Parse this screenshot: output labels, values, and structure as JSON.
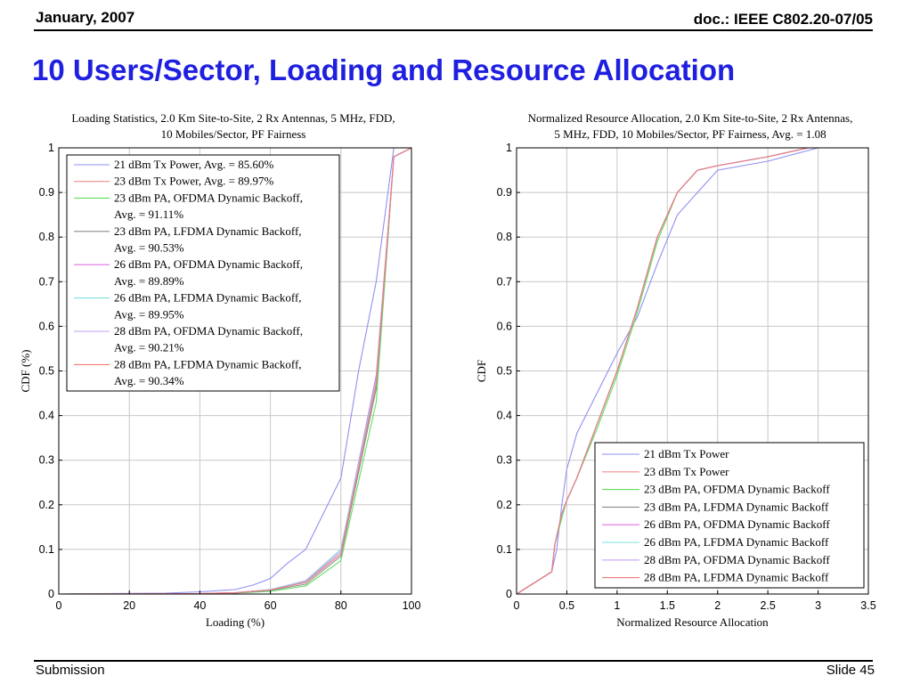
{
  "header": {
    "date": "January, 2007",
    "doc": "doc.: IEEE C802.20-07/05"
  },
  "slide_title": "10 Users/Sector, Loading and Resource Allocation",
  "footer": {
    "left": "Submission",
    "right": "Slide 45"
  },
  "chart_data": [
    {
      "type": "line",
      "title_lines": [
        "Loading Statistics, 2.0 Km Site-to-Site, 2 Rx Antennas, 5 MHz, FDD,",
        "10 Mobiles/Sector, PF Fairness"
      ],
      "xlabel": "Loading (%)",
      "ylabel": "CDF (%)",
      "xlim": [
        0,
        100
      ],
      "ylim": [
        0,
        1
      ],
      "xticks": [
        0,
        20,
        40,
        60,
        80,
        100
      ],
      "xtick_labels": [
        "0",
        "20",
        "40",
        "60",
        "80",
        "100"
      ],
      "yticks": [
        0,
        0.1,
        0.2,
        0.3,
        0.4,
        0.5,
        0.6,
        0.7,
        0.8,
        0.9,
        1
      ],
      "ytick_labels": [
        "0",
        "0.1",
        "0.2",
        "0.3",
        "0.4",
        "0.5",
        "0.6",
        "0.7",
        "0.8",
        "0.9",
        "1"
      ],
      "grid": true,
      "legend_position": "top-left",
      "series": [
        {
          "legend_lines": [
            "21 dBm Tx Power, Avg. = 85.60%"
          ],
          "color": "#8f8ff2",
          "x": [
            0,
            30,
            40,
            50,
            55,
            60,
            65,
            70,
            75,
            80,
            85,
            90,
            95,
            100
          ],
          "y": [
            0,
            0.002,
            0.005,
            0.01,
            0.02,
            0.035,
            0.07,
            0.1,
            0.18,
            0.26,
            0.5,
            0.7,
            1.0,
            1.0
          ]
        },
        {
          "legend_lines": [
            "23 dBm Tx Power, Avg. = 89.97%"
          ],
          "color": "#f08f8f",
          "x": [
            0,
            40,
            50,
            60,
            70,
            80,
            90,
            95,
            100
          ],
          "y": [
            0,
            0.001,
            0.003,
            0.01,
            0.028,
            0.1,
            0.48,
            0.98,
            1.0
          ]
        },
        {
          "legend_lines": [
            "23 dBm PA, OFDMA Dynamic Backoff,",
            "Avg. = 91.11%"
          ],
          "color": "#5fe05f",
          "x": [
            0,
            40,
            50,
            60,
            70,
            80,
            90,
            95,
            100
          ],
          "y": [
            0,
            0.001,
            0.002,
            0.006,
            0.018,
            0.075,
            0.43,
            0.98,
            1.0
          ]
        },
        {
          "legend_lines": [
            "23 dBm PA, LFDMA Dynamic Backoff,",
            "Avg. = 90.53%"
          ],
          "color": "#8c8c8c",
          "x": [
            0,
            40,
            50,
            60,
            70,
            80,
            90,
            95,
            100
          ],
          "y": [
            0,
            0.001,
            0.002,
            0.008,
            0.022,
            0.085,
            0.46,
            0.98,
            1.0
          ]
        },
        {
          "legend_lines": [
            "26 dBm PA, OFDMA Dynamic Backoff,",
            "Avg. = 89.89%"
          ],
          "color": "#e070e0",
          "x": [
            0,
            40,
            50,
            60,
            70,
            80,
            90,
            95,
            100
          ],
          "y": [
            0,
            0.001,
            0.003,
            0.01,
            0.03,
            0.1,
            0.49,
            0.98,
            1.0
          ]
        },
        {
          "legend_lines": [
            "26 dBm PA, LFDMA Dynamic Backoff,",
            "Avg. = 89.95%"
          ],
          "color": "#7fe0e0",
          "x": [
            0,
            40,
            50,
            60,
            70,
            80,
            90,
            95,
            100
          ],
          "y": [
            0,
            0.001,
            0.003,
            0.01,
            0.029,
            0.1,
            0.48,
            0.98,
            1.0
          ]
        },
        {
          "legend_lines": [
            "28 dBm PA, OFDMA Dynamic Backoff,",
            "Avg. = 90.21%"
          ],
          "color": "#c4a0f2",
          "x": [
            0,
            40,
            50,
            60,
            70,
            80,
            90,
            95,
            100
          ],
          "y": [
            0,
            0.001,
            0.003,
            0.009,
            0.027,
            0.095,
            0.47,
            0.98,
            1.0
          ]
        },
        {
          "legend_lines": [
            "28 dBm PA, LFDMA Dynamic Backoff,",
            "Avg. = 90.34%"
          ],
          "color": "#f07878",
          "x": [
            0,
            40,
            50,
            60,
            70,
            80,
            90,
            95,
            100
          ],
          "y": [
            0,
            0.001,
            0.003,
            0.009,
            0.026,
            0.09,
            0.47,
            0.98,
            1.0
          ]
        }
      ]
    },
    {
      "type": "line",
      "title_lines": [
        "Normalized Resource Allocation, 2.0 Km Site-to-Site, 2 Rx Antennas,",
        "5 MHz, FDD, 10 Mobiles/Sector, PF Fairness, Avg. = 1.08"
      ],
      "xlabel": "Normalized Resource Allocation",
      "ylabel": "CDF",
      "xlim": [
        0,
        3.5
      ],
      "ylim": [
        0,
        1
      ],
      "xticks": [
        0,
        0.5,
        1,
        1.5,
        2,
        2.5,
        3,
        3.5
      ],
      "xtick_labels": [
        "0",
        "0.5",
        "1",
        "1.5",
        "2",
        "2.5",
        "3",
        "3.5"
      ],
      "yticks": [
        0,
        0.1,
        0.2,
        0.3,
        0.4,
        0.5,
        0.6,
        0.7,
        0.8,
        0.9,
        1
      ],
      "ytick_labels": [
        "0",
        "0.1",
        "0.2",
        "0.3",
        "0.4",
        "0.5",
        "0.6",
        "0.7",
        "0.8",
        "0.9",
        "1"
      ],
      "grid": true,
      "legend_position": "bottom-right",
      "series": [
        {
          "legend_lines": [
            "21 dBm Tx Power"
          ],
          "color": "#8f8ff2",
          "x": [
            0,
            0.35,
            0.4,
            0.45,
            0.5,
            0.55,
            0.6,
            0.8,
            1.0,
            1.2,
            1.4,
            1.6,
            1.8,
            2.0,
            2.5,
            3.0
          ],
          "y": [
            0,
            0.05,
            0.1,
            0.2,
            0.28,
            0.32,
            0.36,
            0.45,
            0.54,
            0.62,
            0.74,
            0.85,
            0.9,
            0.95,
            0.97,
            1.0
          ]
        },
        {
          "legend_lines": [
            "23 dBm Tx Power"
          ],
          "color": "#f08f8f",
          "x": [
            0,
            0.35,
            0.38,
            0.45,
            0.5,
            0.6,
            0.8,
            1.0,
            1.2,
            1.4,
            1.6,
            1.8,
            2.0,
            2.5,
            2.9
          ],
          "y": [
            0,
            0.05,
            0.11,
            0.18,
            0.21,
            0.26,
            0.38,
            0.5,
            0.64,
            0.8,
            0.9,
            0.95,
            0.96,
            0.98,
            1.0
          ]
        },
        {
          "legend_lines": [
            "23 dBm PA, OFDMA Dynamic Backoff"
          ],
          "color": "#5fe05f",
          "x": [
            0,
            0.35,
            0.38,
            0.45,
            0.5,
            0.6,
            0.8,
            1.0,
            1.2,
            1.4,
            1.6,
            1.8,
            2.0,
            2.5,
            2.9
          ],
          "y": [
            0,
            0.05,
            0.11,
            0.17,
            0.21,
            0.26,
            0.37,
            0.49,
            0.63,
            0.79,
            0.9,
            0.95,
            0.96,
            0.98,
            1.0
          ]
        },
        {
          "legend_lines": [
            "23 dBm PA, LFDMA Dynamic Backoff"
          ],
          "color": "#8c8c8c",
          "x": [
            0,
            0.35,
            0.38,
            0.45,
            0.5,
            0.6,
            0.8,
            1.0,
            1.2,
            1.4,
            1.6,
            1.8,
            2.0,
            2.5,
            2.9
          ],
          "y": [
            0,
            0.05,
            0.11,
            0.18,
            0.21,
            0.26,
            0.38,
            0.5,
            0.64,
            0.8,
            0.9,
            0.95,
            0.96,
            0.98,
            1.0
          ]
        },
        {
          "legend_lines": [
            "26 dBm PA, OFDMA Dynamic Backoff"
          ],
          "color": "#e070e0",
          "x": [
            0,
            0.35,
            0.38,
            0.45,
            0.5,
            0.6,
            0.8,
            1.0,
            1.2,
            1.4,
            1.6,
            1.8,
            2.0,
            2.5,
            2.9
          ],
          "y": [
            0,
            0.05,
            0.11,
            0.18,
            0.21,
            0.26,
            0.38,
            0.5,
            0.64,
            0.8,
            0.9,
            0.95,
            0.96,
            0.98,
            1.0
          ]
        },
        {
          "legend_lines": [
            "26 dBm PA, LFDMA Dynamic Backoff"
          ],
          "color": "#7fe0e0",
          "x": [
            0,
            0.35,
            0.38,
            0.45,
            0.5,
            0.6,
            0.8,
            1.0,
            1.2,
            1.4,
            1.6,
            1.8,
            2.0,
            2.5,
            2.9
          ],
          "y": [
            0,
            0.05,
            0.11,
            0.18,
            0.21,
            0.26,
            0.38,
            0.5,
            0.64,
            0.8,
            0.9,
            0.95,
            0.96,
            0.98,
            1.0
          ]
        },
        {
          "legend_lines": [
            "28 dBm PA, OFDMA Dynamic Backoff"
          ],
          "color": "#c4a0f2",
          "x": [
            0,
            0.35,
            0.38,
            0.45,
            0.5,
            0.6,
            0.8,
            1.0,
            1.2,
            1.4,
            1.6,
            1.8,
            2.0,
            2.5,
            2.9
          ],
          "y": [
            0,
            0.05,
            0.11,
            0.18,
            0.21,
            0.26,
            0.38,
            0.5,
            0.64,
            0.8,
            0.9,
            0.95,
            0.96,
            0.98,
            1.0
          ]
        },
        {
          "legend_lines": [
            "28 dBm PA, LFDMA Dynamic Backoff"
          ],
          "color": "#f07878",
          "x": [
            0,
            0.35,
            0.38,
            0.45,
            0.5,
            0.6,
            0.8,
            1.0,
            1.2,
            1.4,
            1.6,
            1.8,
            2.0,
            2.5,
            2.9
          ],
          "y": [
            0,
            0.05,
            0.11,
            0.18,
            0.21,
            0.26,
            0.38,
            0.5,
            0.64,
            0.8,
            0.9,
            0.95,
            0.96,
            0.98,
            1.0
          ]
        }
      ]
    }
  ]
}
